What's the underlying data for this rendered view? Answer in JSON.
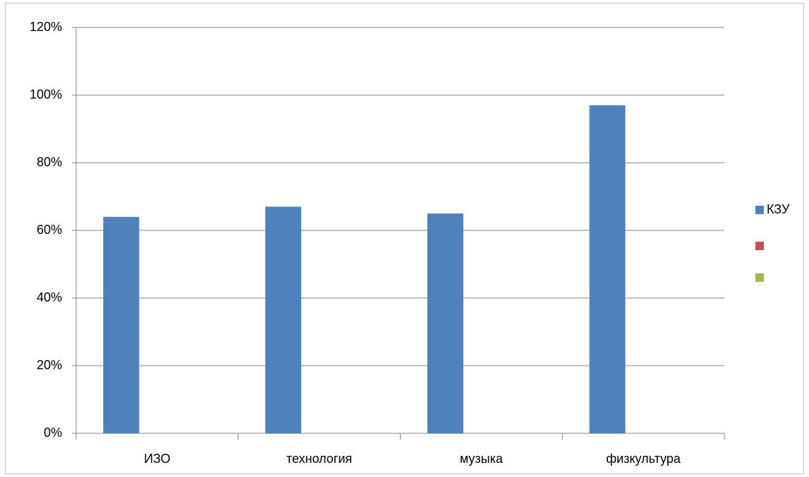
{
  "chart_data": {
    "type": "bar",
    "categories": [
      "ИЗО",
      "технология",
      "музыка",
      "физкультура"
    ],
    "series": [
      {
        "name": "КЗУ",
        "color": "#4f81bd",
        "values": [
          64,
          67,
          65,
          97
        ]
      },
      {
        "name": null,
        "color": "#c0504d",
        "values": [
          null,
          null,
          null,
          null
        ]
      },
      {
        "name": null,
        "color": "#9bbb59",
        "values": [
          null,
          null,
          null,
          null
        ]
      }
    ],
    "ylim": [
      0,
      120
    ],
    "yticks": [
      {
        "value": 0,
        "label": "0%"
      },
      {
        "value": 20,
        "label": "20%"
      },
      {
        "value": 40,
        "label": "40%"
      },
      {
        "value": 60,
        "label": "60%"
      },
      {
        "value": 80,
        "label": "80%"
      },
      {
        "value": 100,
        "label": "100%"
      },
      {
        "value": 120,
        "label": "120%"
      }
    ],
    "grid": true,
    "legend": "right"
  }
}
